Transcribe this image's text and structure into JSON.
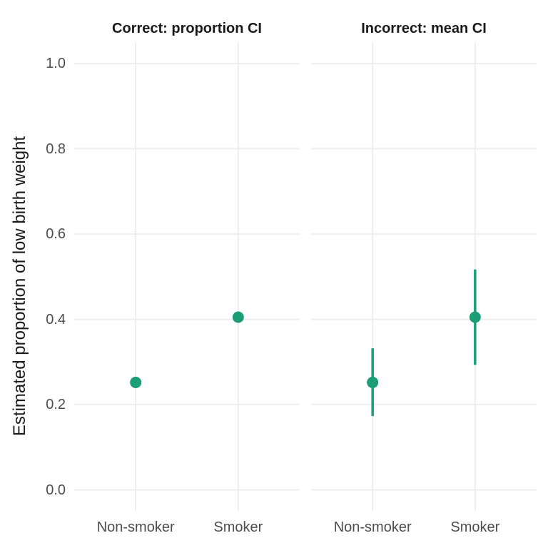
{
  "chart_data": {
    "type": "scatter",
    "subtype": "pointrange-faceted",
    "title": "",
    "ylabel": "Estimated proportion of low birth weight",
    "xlabel": "",
    "ylim": [
      0,
      1
    ],
    "yticks": [
      0.0,
      0.2,
      0.4,
      0.6,
      0.8,
      1.0
    ],
    "ytick_labels": [
      "0.0",
      "0.2",
      "0.4",
      "0.6",
      "0.8",
      "1.0"
    ],
    "categories": [
      "Non-smoker",
      "Smoker"
    ],
    "grid": "major-only",
    "legend": "none",
    "facets": [
      {
        "label": "Correct: proportion CI",
        "points": [
          {
            "category": "Non-smoker",
            "value": 0.252
          },
          {
            "category": "Smoker",
            "value": 0.405
          }
        ]
      },
      {
        "label": "Incorrect: mean CI",
        "points": [
          {
            "category": "Non-smoker",
            "value": 0.252,
            "lower": 0.173,
            "upper": 0.332
          },
          {
            "category": "Smoker",
            "value": 0.405,
            "lower": 0.293,
            "upper": 0.517
          }
        ]
      }
    ],
    "colors": {
      "point": "#1b9e77",
      "gridline": "#ebebeb",
      "axis_text": "#4d4d4d",
      "title_text": "#1a1a1a",
      "background": "#ffffff"
    }
  }
}
